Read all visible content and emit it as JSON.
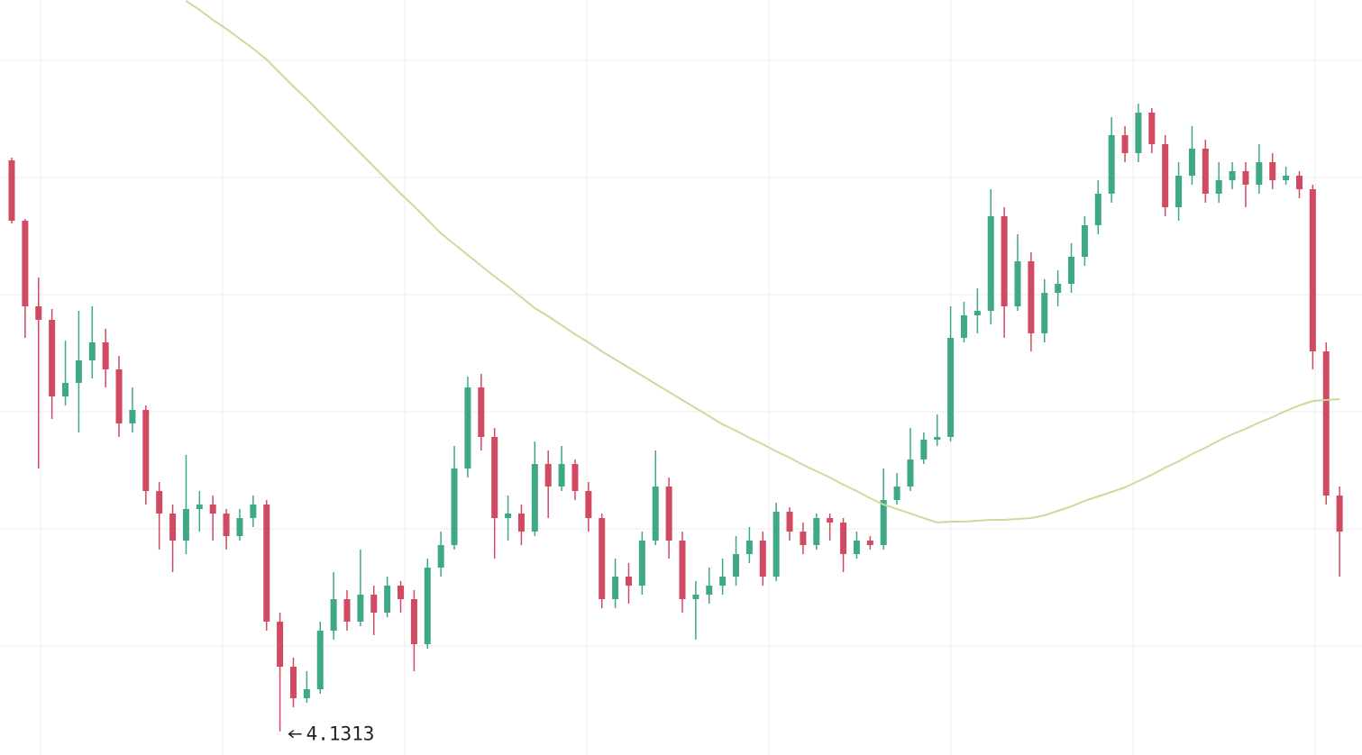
{
  "chart_data": {
    "type": "candlestick",
    "up_color": "#3fa985",
    "down_color": "#d24a62",
    "grid": true,
    "ylim": [
      4.105,
      4.943
    ],
    "yticks": [
      4.226,
      4.356,
      4.486,
      4.616,
      4.746,
      4.876
    ],
    "open": [
      4.765,
      4.698,
      4.603,
      4.588,
      4.503,
      4.518,
      4.543,
      4.563,
      4.533,
      4.473,
      4.488,
      4.398,
      4.373,
      4.343,
      4.378,
      4.383,
      4.373,
      4.348,
      4.368,
      4.383,
      4.253,
      4.203,
      4.168,
      4.178,
      4.243,
      4.278,
      4.253,
      4.283,
      4.263,
      4.293,
      4.278,
      4.228,
      4.313,
      4.338,
      4.423,
      4.513,
      4.458,
      4.368,
      4.373,
      4.353,
      4.428,
      4.403,
      4.428,
      4.398,
      4.368,
      4.278,
      4.303,
      4.293,
      4.343,
      4.403,
      4.343,
      4.278,
      4.283,
      4.293,
      4.303,
      4.328,
      4.343,
      4.303,
      4.375,
      4.353,
      4.338,
      4.368,
      4.363,
      4.328,
      4.343,
      4.338,
      4.388,
      4.403,
      4.433,
      4.455,
      4.458,
      4.568,
      4.593,
      4.598,
      4.703,
      4.603,
      4.653,
      4.573,
      4.618,
      4.628,
      4.658,
      4.693,
      4.728,
      4.793,
      4.773,
      4.818,
      4.783,
      4.713,
      4.748,
      4.778,
      4.728,
      4.743,
      4.753,
      4.738,
      4.763,
      4.743,
      4.748,
      4.733,
      4.553,
      4.393
    ],
    "high": [
      4.768,
      4.7,
      4.635,
      4.6,
      4.565,
      4.598,
      4.603,
      4.578,
      4.548,
      4.513,
      4.493,
      4.408,
      4.383,
      4.438,
      4.398,
      4.393,
      4.378,
      4.378,
      4.393,
      4.388,
      4.263,
      4.213,
      4.198,
      4.253,
      4.308,
      4.288,
      4.333,
      4.293,
      4.303,
      4.298,
      4.288,
      4.323,
      4.353,
      4.448,
      4.525,
      4.528,
      4.468,
      4.393,
      4.383,
      4.453,
      4.443,
      4.448,
      4.433,
      4.408,
      4.373,
      4.323,
      4.318,
      4.353,
      4.443,
      4.413,
      4.353,
      4.298,
      4.313,
      4.323,
      4.348,
      4.358,
      4.353,
      4.385,
      4.38,
      4.363,
      4.373,
      4.373,
      4.368,
      4.353,
      4.348,
      4.423,
      4.418,
      4.468,
      4.463,
      4.483,
      4.603,
      4.608,
      4.623,
      4.733,
      4.713,
      4.683,
      4.663,
      4.633,
      4.643,
      4.673,
      4.703,
      4.743,
      4.813,
      4.803,
      4.828,
      4.823,
      4.793,
      4.763,
      4.803,
      4.788,
      4.763,
      4.763,
      4.763,
      4.783,
      4.773,
      4.758,
      4.753,
      4.738,
      4.563,
      4.403
    ],
    "low": [
      4.695,
      4.568,
      4.423,
      4.478,
      4.493,
      4.463,
      4.523,
      4.513,
      4.458,
      4.463,
      4.383,
      4.333,
      4.308,
      4.328,
      4.353,
      4.343,
      4.333,
      4.343,
      4.358,
      4.243,
      4.1313,
      4.158,
      4.163,
      4.173,
      4.233,
      4.243,
      4.248,
      4.238,
      4.258,
      4.263,
      4.198,
      4.223,
      4.303,
      4.333,
      4.413,
      4.443,
      4.323,
      4.343,
      4.338,
      4.348,
      4.368,
      4.398,
      4.388,
      4.353,
      4.268,
      4.268,
      4.273,
      4.283,
      4.338,
      4.323,
      4.263,
      4.233,
      4.273,
      4.283,
      4.293,
      4.318,
      4.293,
      4.298,
      4.343,
      4.328,
      4.333,
      4.343,
      4.308,
      4.323,
      4.333,
      4.333,
      4.383,
      4.398,
      4.428,
      4.448,
      4.453,
      4.563,
      4.573,
      4.583,
      4.568,
      4.598,
      4.553,
      4.563,
      4.603,
      4.618,
      4.648,
      4.683,
      4.718,
      4.763,
      4.763,
      4.773,
      4.703,
      4.698,
      4.738,
      4.718,
      4.718,
      4.733,
      4.713,
      4.728,
      4.733,
      4.738,
      4.723,
      4.533,
      4.383,
      4.303
    ],
    "close": [
      4.698,
      4.603,
      4.588,
      4.503,
      4.518,
      4.543,
      4.563,
      4.533,
      4.473,
      4.488,
      4.398,
      4.373,
      4.343,
      4.378,
      4.383,
      4.373,
      4.348,
      4.368,
      4.383,
      4.253,
      4.203,
      4.168,
      4.178,
      4.243,
      4.278,
      4.253,
      4.283,
      4.263,
      4.293,
      4.278,
      4.228,
      4.313,
      4.338,
      4.423,
      4.513,
      4.458,
      4.368,
      4.373,
      4.353,
      4.428,
      4.403,
      4.428,
      4.398,
      4.368,
      4.278,
      4.303,
      4.293,
      4.343,
      4.403,
      4.343,
      4.278,
      4.283,
      4.293,
      4.303,
      4.328,
      4.343,
      4.303,
      4.375,
      4.353,
      4.338,
      4.368,
      4.363,
      4.328,
      4.343,
      4.338,
      4.388,
      4.403,
      4.433,
      4.455,
      4.458,
      4.568,
      4.593,
      4.598,
      4.703,
      4.603,
      4.653,
      4.573,
      4.618,
      4.628,
      4.658,
      4.693,
      4.728,
      4.793,
      4.773,
      4.818,
      4.783,
      4.713,
      4.748,
      4.778,
      4.728,
      4.743,
      4.753,
      4.738,
      4.763,
      4.743,
      4.748,
      4.733,
      4.553,
      4.393,
      4.353
    ],
    "ma": {
      "color": "#c9dc9e",
      "values": [
        null,
        null,
        null,
        null,
        null,
        null,
        null,
        null,
        null,
        null,
        null,
        null,
        null,
        4.942,
        4.932,
        4.921,
        4.911,
        4.9,
        4.889,
        4.877,
        4.862,
        4.847,
        4.833,
        4.818,
        4.803,
        4.788,
        4.773,
        4.758,
        4.743,
        4.728,
        4.714,
        4.699,
        4.684,
        4.672,
        4.66,
        4.648,
        4.636,
        4.625,
        4.613,
        4.601,
        4.592,
        4.582,
        4.572,
        4.563,
        4.553,
        4.544,
        4.535,
        4.526,
        4.517,
        4.508,
        4.499,
        4.49,
        4.481,
        4.472,
        4.465,
        4.457,
        4.45,
        4.442,
        4.435,
        4.427,
        4.42,
        4.413,
        4.405,
        4.398,
        4.39,
        4.383,
        4.378,
        4.373,
        4.368,
        4.363,
        4.364,
        4.364,
        4.365,
        4.366,
        4.366,
        4.367,
        4.368,
        4.371,
        4.376,
        4.381,
        4.387,
        4.392,
        4.397,
        4.402,
        4.409,
        4.416,
        4.424,
        4.431,
        4.439,
        4.446,
        4.454,
        4.461,
        4.467,
        4.474,
        4.48,
        4.487,
        4.493,
        4.498,
        4.499,
        4.5
      ]
    }
  }
}
